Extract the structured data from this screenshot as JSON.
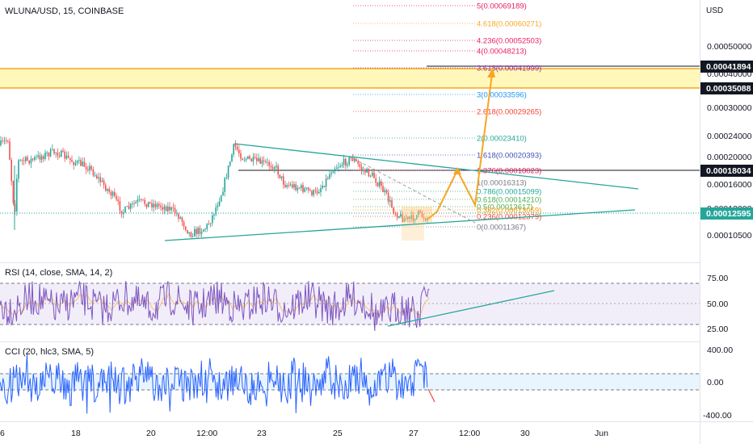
{
  "header": {
    "symbol": "WLUNA/USD, 15, COINBASE",
    "currency": "USD"
  },
  "colors": {
    "candle_up": "#26a69a",
    "candle_down": "#ef5350",
    "trendline": "#26a69a",
    "projection": "#f5a623",
    "rsi_line": "#7e57c2",
    "rsi_band": "#7e57c2",
    "cci_line": "#2962ff",
    "cci_band": "#2196f3",
    "zone_fill": "#fff59d",
    "zone_border": "#f5a623",
    "text": "#131722",
    "grid": "#e0e3eb"
  },
  "price_axis": {
    "ticks": [
      "0.00050000",
      "0.00040000",
      "0.00030000",
      "0.00024000",
      "0.00020000",
      "0.00016000",
      "0.00013000",
      "0.00010500"
    ],
    "markers": [
      {
        "label": "0.00041894",
        "style": "dark"
      },
      {
        "label": "0.00035088",
        "style": "dark"
      },
      {
        "label": "0.00018034",
        "style": "dark"
      },
      {
        "label": "0.00012595",
        "style": "green"
      }
    ]
  },
  "fib_levels": [
    {
      "label": "5(0.00069189)",
      "color": "#e91e63"
    },
    {
      "label": "4.618(0.00060271)",
      "color": "#f9a825"
    },
    {
      "label": "4.236(0.00052503)",
      "color": "#e91e63"
    },
    {
      "label": "4(0.00048213)",
      "color": "#e91e63"
    },
    {
      "label": "3.618(0.00041999)",
      "color": "#9c27b0"
    },
    {
      "label": "3(0.00033596)",
      "color": "#2196f3"
    },
    {
      "label": "2.618(0.00029265)",
      "color": "#f44336"
    },
    {
      "label": "2(0.00023410)",
      "color": "#26a69a"
    },
    {
      "label": "1.618(0.00020393)",
      "color": "#3f51b5"
    },
    {
      "label": "1.376(0.00018023)",
      "color": "#e91e63"
    },
    {
      "label": "1(0.00016313)",
      "color": "#787b86"
    },
    {
      "label": "0.786(0.00015099)",
      "color": "#26a69a"
    },
    {
      "label": "0.618(0.00014210)",
      "color": "#4caf50"
    },
    {
      "label": "0.5(0.00013617)",
      "color": "#4caf50"
    },
    {
      "label": "0.382(0.00013059)",
      "color": "#ff9800"
    },
    {
      "label": "0.236(0.00012379)",
      "color": "#f44336"
    },
    {
      "label": "0(0.00011367)",
      "color": "#787b86"
    }
  ],
  "rsi": {
    "title": "RSI (14, close, SMA, 14, 2)",
    "ticks": [
      "75.00",
      "50.00",
      "25.00"
    ],
    "upper": 70,
    "lower": 30
  },
  "cci": {
    "title": "CCI (20, hlc3, SMA, 5)",
    "ticks": [
      "400.00",
      "0.00",
      "-400.00"
    ],
    "upper": 100,
    "lower": -100
  },
  "time_axis": [
    "6",
    "18",
    "20",
    "12:00",
    "23",
    "25",
    "27",
    "12:00",
    "30",
    "Jun"
  ]
}
